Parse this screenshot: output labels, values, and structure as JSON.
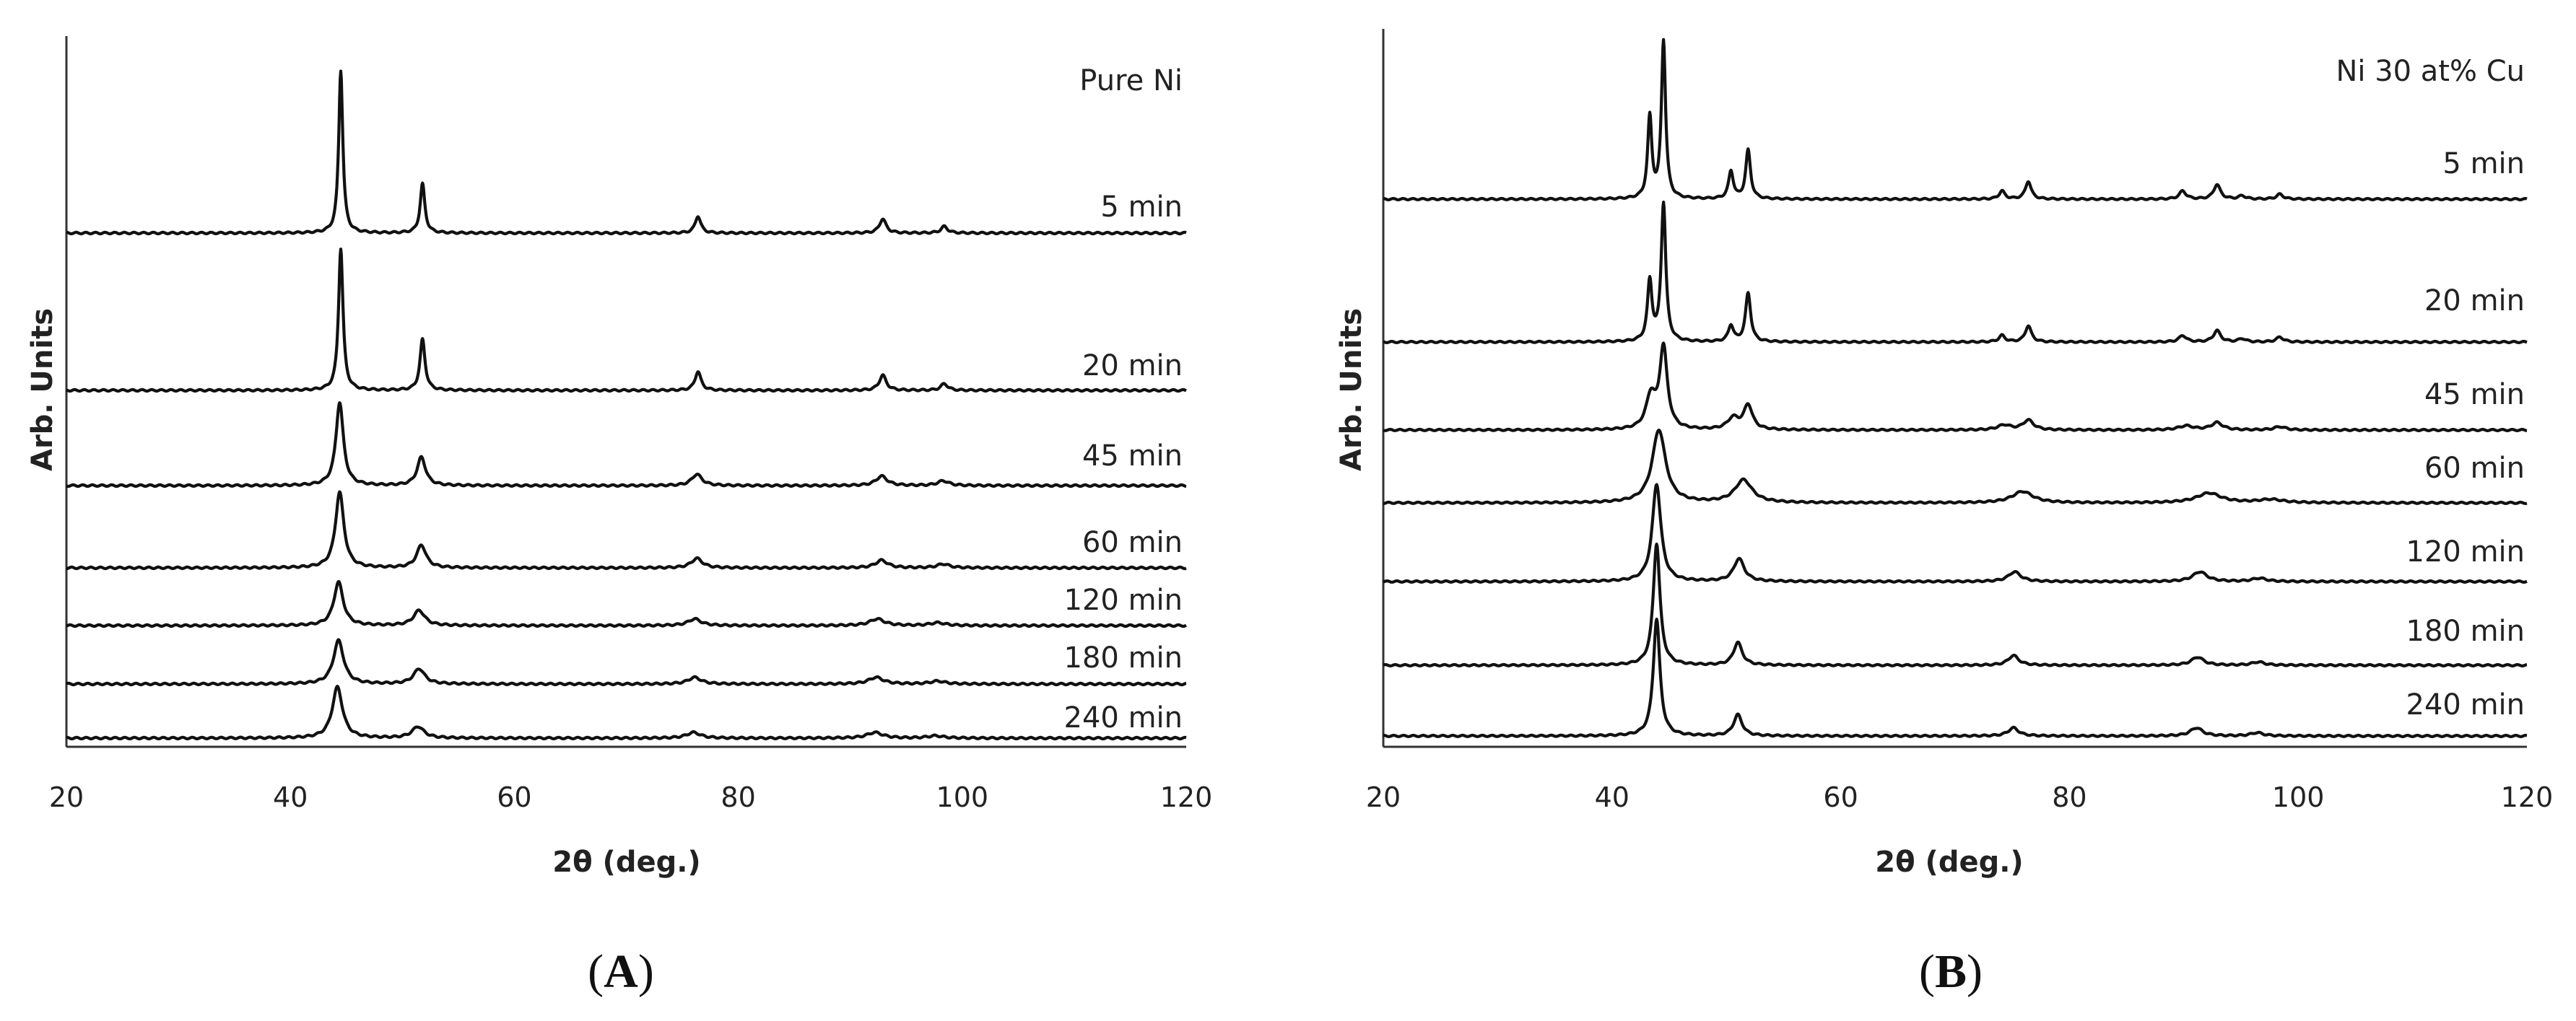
{
  "chart_data": [
    {
      "type": "line",
      "panel_label": "A",
      "title": "Pure Ni",
      "xlabel": "2θ (deg.)",
      "ylabel": "Arb. Units",
      "xlim": [
        20,
        120
      ],
      "xticks": [
        20,
        40,
        60,
        80,
        100,
        120
      ],
      "grid": false,
      "series": [
        {
          "name": "5 min",
          "peaks": [
            {
              "x": 44.5,
              "h": 0.86,
              "w": 0.22
            },
            {
              "x": 51.8,
              "h": 0.26,
              "w": 0.25
            },
            {
              "x": 76.4,
              "h": 0.09,
              "w": 0.3
            },
            {
              "x": 92.9,
              "h": 0.075,
              "w": 0.35
            },
            {
              "x": 98.4,
              "h": 0.035,
              "w": 0.35
            }
          ]
        },
        {
          "name": "20 min",
          "peaks": [
            {
              "x": 44.5,
              "h": 0.75,
              "w": 0.24
            },
            {
              "x": 51.8,
              "h": 0.27,
              "w": 0.27
            },
            {
              "x": 76.4,
              "h": 0.1,
              "w": 0.32
            },
            {
              "x": 92.9,
              "h": 0.08,
              "w": 0.37
            },
            {
              "x": 98.4,
              "h": 0.035,
              "w": 0.37
            }
          ]
        },
        {
          "name": "45 min",
          "peaks": [
            {
              "x": 44.4,
              "h": 0.44,
              "w": 0.4
            },
            {
              "x": 51.7,
              "h": 0.15,
              "w": 0.45
            },
            {
              "x": 76.3,
              "h": 0.06,
              "w": 0.55
            },
            {
              "x": 92.8,
              "h": 0.05,
              "w": 0.6
            },
            {
              "x": 98.3,
              "h": 0.025,
              "w": 0.6
            }
          ]
        },
        {
          "name": "60 min",
          "peaks": [
            {
              "x": 44.4,
              "h": 0.4,
              "w": 0.45
            },
            {
              "x": 51.7,
              "h": 0.12,
              "w": 0.5
            },
            {
              "x": 76.3,
              "h": 0.05,
              "w": 0.6
            },
            {
              "x": 92.8,
              "h": 0.04,
              "w": 0.65
            },
            {
              "x": 98.3,
              "h": 0.02,
              "w": 0.65
            }
          ]
        },
        {
          "name": "120 min",
          "peaks": [
            {
              "x": 44.3,
              "h": 0.23,
              "w": 0.5
            },
            {
              "x": 51.5,
              "h": 0.08,
              "w": 0.6
            },
            {
              "x": 76.1,
              "h": 0.035,
              "w": 0.7
            },
            {
              "x": 92.4,
              "h": 0.035,
              "w": 0.8
            },
            {
              "x": 97.8,
              "h": 0.015,
              "w": 0.8
            }
          ]
        },
        {
          "name": "180 min",
          "peaks": [
            {
              "x": 44.3,
              "h": 0.23,
              "w": 0.55
            },
            {
              "x": 51.5,
              "h": 0.08,
              "w": 0.6
            },
            {
              "x": 76.1,
              "h": 0.035,
              "w": 0.7
            },
            {
              "x": 92.3,
              "h": 0.035,
              "w": 0.8
            },
            {
              "x": 97.8,
              "h": 0.015,
              "w": 0.8
            }
          ]
        },
        {
          "name": "240 min",
          "peaks": [
            {
              "x": 44.2,
              "h": 0.27,
              "w": 0.55
            },
            {
              "x": 51.4,
              "h": 0.06,
              "w": 0.65
            },
            {
              "x": 76.0,
              "h": 0.03,
              "w": 0.75
            },
            {
              "x": 92.2,
              "h": 0.03,
              "w": 0.85
            },
            {
              "x": 97.6,
              "h": 0.012,
              "w": 0.85
            }
          ]
        }
      ]
    },
    {
      "type": "line",
      "panel_label": "B",
      "title": "Ni 30 at% Cu",
      "xlabel": "2θ (deg.)",
      "ylabel": "Arb. Units",
      "xlim": [
        20,
        120
      ],
      "xticks": [
        20,
        40,
        60,
        80,
        100,
        120
      ],
      "grid": false,
      "series": [
        {
          "name": "5 min",
          "peaks": [
            {
              "x": 43.3,
              "h": 0.5,
              "w": 0.22
            },
            {
              "x": 44.5,
              "h": 0.97,
              "w": 0.22
            },
            {
              "x": 50.4,
              "h": 0.17,
              "w": 0.25
            },
            {
              "x": 51.9,
              "h": 0.3,
              "w": 0.25
            },
            {
              "x": 74.1,
              "h": 0.05,
              "w": 0.3
            },
            {
              "x": 76.4,
              "h": 0.11,
              "w": 0.3
            },
            {
              "x": 89.9,
              "h": 0.05,
              "w": 0.35
            },
            {
              "x": 92.9,
              "h": 0.09,
              "w": 0.35
            },
            {
              "x": 95.1,
              "h": 0.02,
              "w": 0.35
            },
            {
              "x": 98.4,
              "h": 0.03,
              "w": 0.35
            }
          ]
        },
        {
          "name": "20 min",
          "peaks": [
            {
              "x": 43.3,
              "h": 0.37,
              "w": 0.24
            },
            {
              "x": 44.5,
              "h": 0.85,
              "w": 0.24
            },
            {
              "x": 50.4,
              "h": 0.1,
              "w": 0.27
            },
            {
              "x": 51.9,
              "h": 0.3,
              "w": 0.27
            },
            {
              "x": 74.1,
              "h": 0.04,
              "w": 0.32
            },
            {
              "x": 76.4,
              "h": 0.1,
              "w": 0.32
            },
            {
              "x": 89.9,
              "h": 0.04,
              "w": 0.37
            },
            {
              "x": 92.9,
              "h": 0.07,
              "w": 0.37
            },
            {
              "x": 95.1,
              "h": 0.02,
              "w": 0.37
            },
            {
              "x": 98.4,
              "h": 0.03,
              "w": 0.37
            }
          ]
        },
        {
          "name": "45 min",
          "peaks": [
            {
              "x": 43.4,
              "h": 0.2,
              "w": 0.5
            },
            {
              "x": 44.5,
              "h": 0.5,
              "w": 0.4
            },
            {
              "x": 50.6,
              "h": 0.07,
              "w": 0.6
            },
            {
              "x": 51.9,
              "h": 0.15,
              "w": 0.45
            },
            {
              "x": 74.3,
              "h": 0.03,
              "w": 0.7
            },
            {
              "x": 76.4,
              "h": 0.06,
              "w": 0.55
            },
            {
              "x": 90.2,
              "h": 0.025,
              "w": 0.8
            },
            {
              "x": 92.9,
              "h": 0.045,
              "w": 0.6
            },
            {
              "x": 98.4,
              "h": 0.02,
              "w": 0.6
            }
          ]
        },
        {
          "name": "60 min",
          "peaks": [
            {
              "x": 44.1,
              "h": 0.45,
              "w": 0.7
            },
            {
              "x": 51.5,
              "h": 0.14,
              "w": 0.9
            },
            {
              "x": 75.9,
              "h": 0.07,
              "w": 1.1
            },
            {
              "x": 92.2,
              "h": 0.06,
              "w": 1.3
            },
            {
              "x": 97.6,
              "h": 0.02,
              "w": 1.3
            }
          ]
        },
        {
          "name": "120 min",
          "peaks": [
            {
              "x": 43.9,
              "h": 0.6,
              "w": 0.45
            },
            {
              "x": 51.1,
              "h": 0.14,
              "w": 0.55
            },
            {
              "x": 75.2,
              "h": 0.06,
              "w": 0.65
            },
            {
              "x": 91.4,
              "h": 0.06,
              "w": 0.75
            },
            {
              "x": 96.6,
              "h": 0.02,
              "w": 0.75
            }
          ]
        },
        {
          "name": "180 min",
          "peaks": [
            {
              "x": 43.9,
              "h": 0.75,
              "w": 0.35
            },
            {
              "x": 51.0,
              "h": 0.14,
              "w": 0.45
            },
            {
              "x": 75.1,
              "h": 0.06,
              "w": 0.55
            },
            {
              "x": 91.2,
              "h": 0.05,
              "w": 0.65
            },
            {
              "x": 96.5,
              "h": 0.02,
              "w": 0.65
            }
          ]
        },
        {
          "name": "240 min",
          "peaks": [
            {
              "x": 43.9,
              "h": 0.72,
              "w": 0.35
            },
            {
              "x": 51.0,
              "h": 0.13,
              "w": 0.45
            },
            {
              "x": 75.1,
              "h": 0.05,
              "w": 0.55
            },
            {
              "x": 91.1,
              "h": 0.05,
              "w": 0.65
            },
            {
              "x": 96.4,
              "h": 0.02,
              "w": 0.65
            }
          ]
        }
      ]
    }
  ]
}
